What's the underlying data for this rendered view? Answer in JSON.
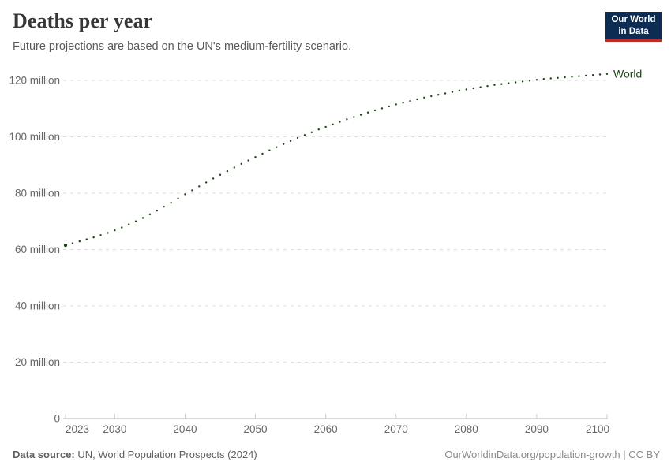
{
  "header": {
    "title": "Deaths per year",
    "subtitle": "Future projections are based on the UN's medium-fertility scenario.",
    "logo": {
      "line1": "Our World",
      "line2": "in Data"
    }
  },
  "footer": {
    "source_label": "Data source:",
    "source_text": " UN, World Population Prospects (2024)",
    "credit": "OurWorldinData.org/population-growth | CC BY"
  },
  "colors": {
    "series_green": "#18470f",
    "grid": "#dedede",
    "axis_line": "#b5b5b5",
    "tick_mark": "#cccccc",
    "axis_text": "#666666",
    "logo_navy": "#0d2c54",
    "logo_red": "#c22a2a",
    "title_text": "#373737",
    "subtitle_text": "#5a5a5a"
  },
  "chart_data": {
    "type": "line",
    "line_style": "dotted-projection",
    "title": "Deaths per year",
    "subtitle": "Future projections are based on the UN's medium-fertility scenario.",
    "unit": "deaths per year",
    "grid": true,
    "legend_position": "right-of-line-end",
    "ylim": [
      0,
      125
    ],
    "xlim": [
      2023,
      2100
    ],
    "x_axis": {
      "ticks": [
        {
          "year": 2023,
          "label": "2023"
        },
        {
          "year": 2030,
          "label": "2030"
        },
        {
          "year": 2040,
          "label": "2040"
        },
        {
          "year": 2050,
          "label": "2050"
        },
        {
          "year": 2060,
          "label": "2060"
        },
        {
          "year": 2070,
          "label": "2070"
        },
        {
          "year": 2080,
          "label": "2080"
        },
        {
          "year": 2090,
          "label": "2090"
        },
        {
          "year": 2100,
          "label": "2100"
        }
      ]
    },
    "y_axis": {
      "unit_suffix": " million",
      "ticks": [
        {
          "value": 0,
          "label": "0"
        },
        {
          "value": 20,
          "label": "20 million"
        },
        {
          "value": 40,
          "label": "40 million"
        },
        {
          "value": 60,
          "label": "60 million"
        },
        {
          "value": 80,
          "label": "80 million"
        },
        {
          "value": 100,
          "label": "100 million"
        },
        {
          "value": 120,
          "label": "120 million"
        }
      ]
    },
    "series": [
      {
        "name": "World",
        "color": "#18470f",
        "start_year": 2023,
        "values_unit": "millions",
        "values": [
          61.5,
          62.2,
          62.9,
          63.6,
          64.3,
          65.1,
          65.9,
          66.8,
          67.8,
          68.9,
          70.0,
          71.2,
          72.5,
          73.8,
          75.2,
          76.6,
          78.1,
          79.6,
          81.0,
          82.4,
          83.8,
          85.2,
          86.5,
          87.8,
          89.1,
          90.4,
          91.6,
          92.8,
          94.0,
          95.2,
          96.3,
          97.4,
          98.5,
          99.6,
          100.6,
          101.6,
          102.6,
          103.5,
          104.4,
          105.3,
          106.2,
          107.0,
          107.8,
          108.6,
          109.4,
          110.1,
          110.8,
          111.5,
          112.1,
          112.7,
          113.3,
          113.9,
          114.4,
          114.9,
          115.4,
          115.9,
          116.4,
          116.8,
          117.2,
          117.6,
          118.0,
          118.4,
          118.7,
          119.0,
          119.3,
          119.6,
          119.9,
          120.2,
          120.5,
          120.7,
          120.9,
          121.1,
          121.3,
          121.5,
          121.7,
          121.9,
          122.1,
          122.3
        ]
      }
    ]
  }
}
